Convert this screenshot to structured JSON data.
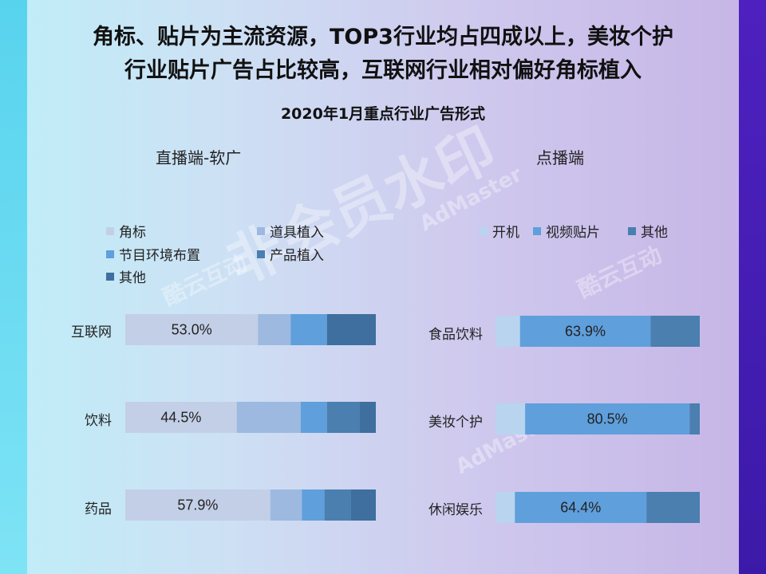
{
  "headline": {
    "line1": "角标、贴片为主流资源，TOP3行业均占四成以上，美妆个护",
    "line2": "行业贴片广告占比较高，互联网行业相对偏好角标植入"
  },
  "chart_title": "2020年1月重点行业广告形式",
  "watermarks": {
    "mark1": "非会员水印",
    "mark2": "AdMaster",
    "mark3": "酷云互动"
  },
  "chart_data": [
    {
      "type": "bar",
      "orientation": "horizontal",
      "stacked": true,
      "normalized": true,
      "title": "直播端-软广",
      "categories": [
        "互联网",
        "饮料",
        "药品"
      ],
      "series": [
        {
          "name": "角标",
          "color": "#c3cfe7",
          "values": [
            53.0,
            44.5,
            57.9
          ]
        },
        {
          "name": "道具植入",
          "color": "#9db9e0",
          "values": [
            13.0,
            25.5,
            12.6
          ]
        },
        {
          "name": "节目环境布置",
          "color": "#5f9fdc",
          "values": [
            14.5,
            10.5,
            9.0
          ]
        },
        {
          "name": "产品植入",
          "color": "#4a7faf",
          "values": [
            0,
            13.0,
            10.5
          ]
        },
        {
          "name": "其他",
          "color": "#3e6f9e",
          "values": [
            19.5,
            6.5,
            10.0
          ]
        }
      ],
      "data_labels": [
        "53.0%",
        "44.5%",
        "57.9%"
      ],
      "legend_position": "top"
    },
    {
      "type": "bar",
      "orientation": "horizontal",
      "stacked": true,
      "normalized": true,
      "title": "点播端",
      "categories": [
        "食品饮料",
        "美妆个护",
        "休闲娱乐"
      ],
      "series": [
        {
          "name": "开机",
          "color": "#b9d4ef",
          "values": [
            12.0,
            14.5,
            9.5
          ]
        },
        {
          "name": "视频贴片",
          "color": "#5f9fdc",
          "values": [
            63.9,
            80.5,
            64.4
          ]
        },
        {
          "name": "其他",
          "color": "#4a7faf",
          "values": [
            24.1,
            5.0,
            26.1
          ]
        }
      ],
      "data_labels": [
        "63.9%",
        "80.5%",
        "64.4%"
      ],
      "legend_position": "top"
    }
  ]
}
